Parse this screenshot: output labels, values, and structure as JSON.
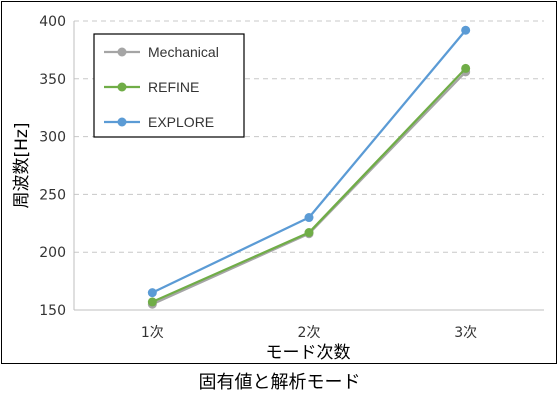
{
  "caption": "固有値と解析モード",
  "chart_data": {
    "type": "line",
    "categories": [
      "1次",
      "2次",
      "3次"
    ],
    "xlabel": "モード次数",
    "ylabel": "周波数[Hz]",
    "ylim": [
      150,
      400
    ],
    "yticks": [
      150,
      200,
      250,
      300,
      350,
      400
    ],
    "grid": "horizontal-dashed",
    "legend": "top-left",
    "series": [
      {
        "name": "Mechanical",
        "color": "#a5a5a5",
        "values": [
          155,
          216,
          356
        ]
      },
      {
        "name": "REFINE",
        "color": "#70ad47",
        "values": [
          157,
          217,
          359
        ]
      },
      {
        "name": "EXPLORE",
        "color": "#5b9bd5",
        "values": [
          165,
          230,
          392
        ]
      }
    ]
  }
}
